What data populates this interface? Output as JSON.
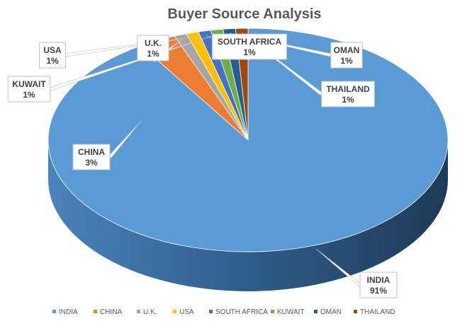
{
  "chart_data": {
    "type": "pie",
    "title": "Buyer Source Analysis",
    "categories": [
      "INDIA",
      "CHINA",
      "U.K.",
      "USA",
      "SOUTH AFRICA",
      "KUWAIT",
      "OMAN",
      "THAILAND"
    ],
    "values": [
      91,
      3,
      1,
      1,
      1,
      1,
      1,
      1
    ],
    "data_labels": [
      "91%",
      "3%",
      "1%",
      "1%",
      "1%",
      "1%",
      "1%",
      "1%"
    ],
    "colors": [
      "#5B9BD5",
      "#ED7D31",
      "#A5A5A5",
      "#FFC000",
      "#4472C4",
      "#70AD47",
      "#255E91",
      "#9E480E"
    ],
    "style": "3d-pie",
    "legend_position": "bottom"
  }
}
